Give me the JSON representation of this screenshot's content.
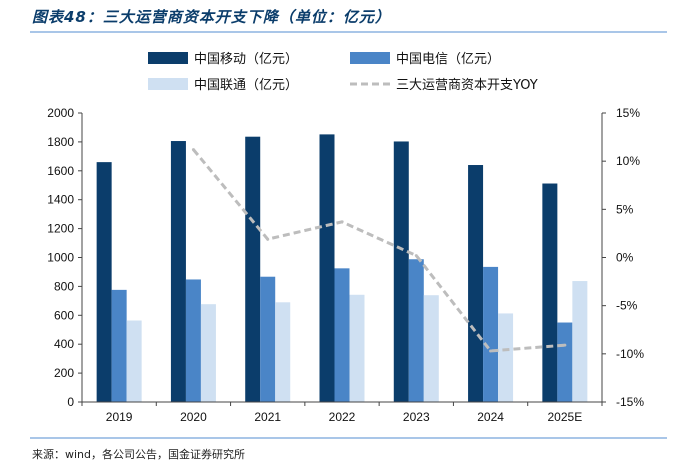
{
  "header": {
    "title": "图表48：三大运营商资本开支下降（单位：亿元）"
  },
  "footer": {
    "source": "来源：wind，各公司公告，国金证券研究所"
  },
  "chart_data": {
    "type": "bar",
    "title": "图表48：三大运营商资本开支下降（单位：亿元）",
    "categories": [
      "2019",
      "2020",
      "2021",
      "2022",
      "2023",
      "2024",
      "2025E"
    ],
    "series": [
      {
        "name": "中国移动（亿元）",
        "type": "bar",
        "color": "#0b3d6b",
        "axis": "left",
        "values": [
          1660,
          1806,
          1836,
          1852,
          1803,
          1640,
          1512
        ]
      },
      {
        "name": "中国电信（亿元）",
        "type": "bar",
        "color": "#4a85c7",
        "axis": "left",
        "values": [
          776,
          848,
          867,
          925,
          988,
          935,
          550
        ]
      },
      {
        "name": "中国联通（亿元）",
        "type": "bar",
        "color": "#cfe0f2",
        "axis": "left",
        "values": [
          564,
          677,
          690,
          742,
          739,
          613,
          837
        ]
      },
      {
        "name": "三大运营商资本开支YOY",
        "type": "line",
        "color": "#bdbdbd",
        "axis": "right",
        "values": [
          null,
          11.2,
          1.9,
          3.7,
          0.2,
          -9.7,
          -9.1
        ]
      }
    ],
    "ylim_left": [
      0,
      2000
    ],
    "yticks_left": [
      "0",
      "200",
      "400",
      "600",
      "800",
      "1000",
      "1200",
      "1400",
      "1600",
      "1800",
      "2000"
    ],
    "ylim_right": [
      -15,
      15
    ],
    "yticks_right": [
      "-15%",
      "-10%",
      "-5%",
      "0%",
      "5%",
      "10%",
      "15%"
    ],
    "legend_position": "top",
    "grid": false
  }
}
